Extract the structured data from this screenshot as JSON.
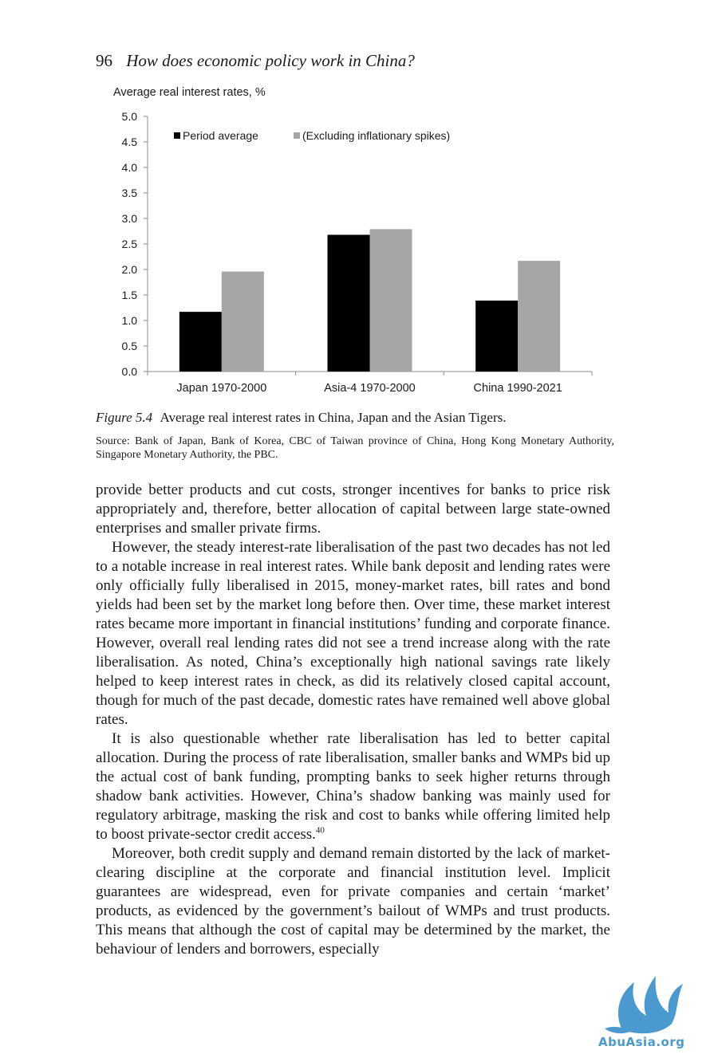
{
  "header": {
    "page_number": "96",
    "running_title": "How does economic policy work in China?"
  },
  "chart_data": {
    "type": "bar",
    "title": "",
    "ylabel": "Average real interest rates, %",
    "xlabel": "",
    "ylim": [
      0,
      5.0
    ],
    "yticks": [
      "0.0",
      "0.5",
      "1.0",
      "1.5",
      "2.0",
      "2.5",
      "3.0",
      "3.5",
      "4.0",
      "4.5",
      "5.0"
    ],
    "categories": [
      "Japan 1970-2000",
      "Asia-4 1970-2000",
      "China 1990-2021"
    ],
    "series": [
      {
        "name": "Period average",
        "values": [
          1.17,
          2.68,
          1.39
        ],
        "color": "#000000"
      },
      {
        "name": "(Excluding inflationary spikes)",
        "values": [
          1.96,
          2.79,
          2.17
        ],
        "color": "#a6a6a6"
      }
    ],
    "legend_position": "top-left",
    "grid": false
  },
  "caption": {
    "label": "Figure 5.4",
    "text": "Average real interest rates in China, Japan and the Asian Tigers."
  },
  "source": "Source: Bank of Japan, Bank of Korea, CBC of Taiwan province of China, Hong Kong Monetary Authority, Singapore Monetary Authority, the PBC.",
  "body": {
    "p1": "provide better products and cut costs, stronger incentives for banks to price risk appropriately and, therefore, better allocation of capital between large state-owned enterprises and smaller private firms.",
    "p2": "However, the steady interest-rate liberalisation of the past two decades has not led to a notable increase in real interest rates. While bank deposit and lending rates were only officially fully liberalised in 2015, money-market rates, bill rates and bond yields had been set by the market long before then. Over time, these market interest rates became more important in financial institutions’ funding and corporate finance. However, overall real lending rates did not see a trend increase along with the rate liberalisation. As noted, China’s exceptionally high national savings rate likely helped to keep interest rates in check, as did its relatively closed capital account, though for much of the past decade, domestic rates have remained well above global rates.",
    "p3": "It is also questionable whether rate liberalisation has led to better capital allocation. During the process of rate liberalisation, smaller banks and WMPs bid up the actual cost of bank funding, prompting banks to seek higher returns through shadow bank activities. However, China’s shadow banking was mainly used for regulatory arbitrage, masking the risk and cost to banks while offering limited help to boost private-sector credit access.",
    "p3_note": "40",
    "p4": "Moreover, both credit supply and demand remain distorted by the lack of market-clearing discipline at the corporate and financial institution level. Implicit guarantees are widespread, even for private companies and certain ‘market’ products, as evidenced by the government’s bailout of WMPs and trust products. This means that although the cost of capital may be determined by the market, the behaviour of lenders and borrowers, especially"
  },
  "watermark": {
    "text": "AbuAsia.org",
    "color": "#4a9ad0"
  }
}
